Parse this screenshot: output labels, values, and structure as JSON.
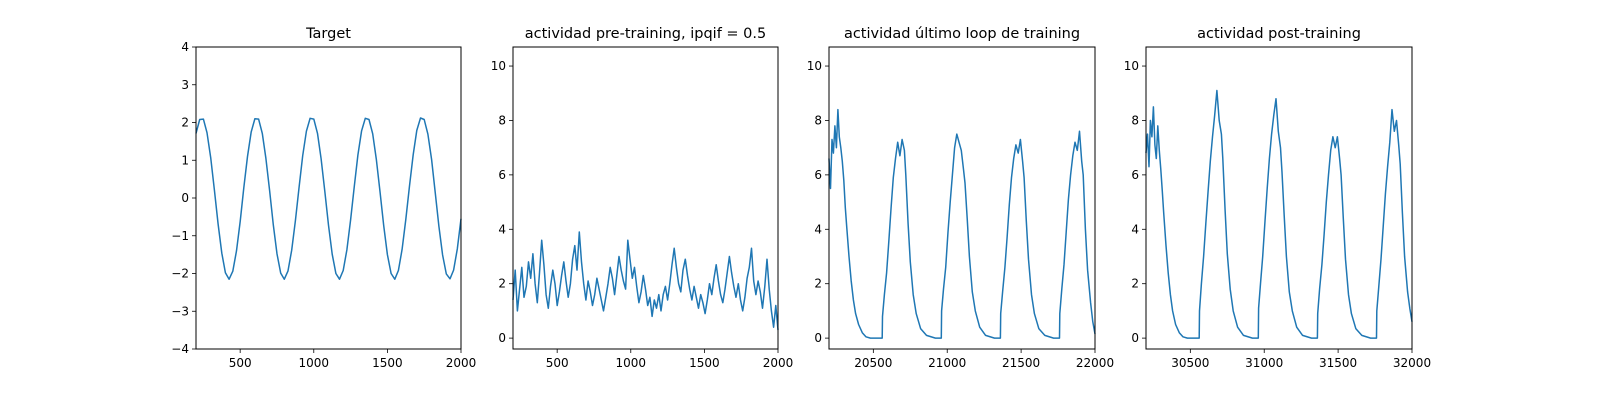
{
  "chart_data": [
    {
      "type": "line",
      "title": "Target",
      "xlim": [
        200,
        2000
      ],
      "ylim": [
        -4,
        4
      ],
      "xticks": [
        500,
        1000,
        1500,
        2000
      ],
      "yticks": [
        -4,
        -3,
        -2,
        -1,
        0,
        1,
        2,
        3,
        4
      ],
      "series": [
        {
          "color": "#1f77b4",
          "x": [
            200,
            225,
            250,
            275,
            300,
            325,
            350,
            375,
            400,
            425,
            450,
            475,
            500,
            525,
            550,
            575,
            600,
            625,
            650,
            675,
            700,
            725,
            750,
            775,
            800,
            825,
            850,
            875,
            900,
            925,
            950,
            975,
            1000,
            1025,
            1050,
            1075,
            1100,
            1125,
            1150,
            1175,
            1200,
            1225,
            1250,
            1275,
            1300,
            1325,
            1350,
            1375,
            1400,
            1425,
            1450,
            1475,
            1500,
            1525,
            1550,
            1575,
            1600,
            1625,
            1650,
            1675,
            1700,
            1725,
            1750,
            1775,
            1800,
            1825,
            1850,
            1875,
            1900,
            1925,
            1950,
            1975,
            2000
          ],
          "y": [
            1.71,
            2.08,
            2.09,
            1.73,
            1.07,
            0.21,
            -0.69,
            -1.46,
            -1.98,
            -2.15,
            -1.94,
            -1.4,
            -0.62,
            0.27,
            1.1,
            1.75,
            2.1,
            2.09,
            1.71,
            1.05,
            0.2,
            -0.71,
            -1.48,
            -1.99,
            -2.15,
            -1.93,
            -1.38,
            -0.6,
            0.29,
            1.12,
            1.77,
            2.11,
            2.09,
            1.71,
            1.04,
            0.18,
            -0.72,
            -1.49,
            -2.0,
            -2.15,
            -1.92,
            -1.37,
            -0.58,
            0.31,
            1.14,
            1.78,
            2.11,
            2.08,
            1.7,
            1.03,
            0.17,
            -0.73,
            -1.5,
            -2.0,
            -2.15,
            -1.92,
            -1.36,
            -0.57,
            0.32,
            1.15,
            1.79,
            2.12,
            2.08,
            1.69,
            1.02,
            0.15,
            -0.75,
            -1.51,
            -2.01,
            -2.14,
            -1.91,
            -1.35,
            -0.55
          ]
        }
      ]
    },
    {
      "type": "line",
      "title": "actividad pre-training, ipqif = 0.5",
      "xlim": [
        200,
        2000
      ],
      "ylim": [
        -0.4,
        10.7
      ],
      "xticks": [
        500,
        1000,
        1500,
        2000
      ],
      "yticks": [
        0,
        2,
        4,
        6,
        8,
        10
      ],
      "series": [
        {
          "color": "#1f77b4",
          "x": [
            200,
            215,
            230,
            245,
            260,
            275,
            290,
            305,
            320,
            335,
            350,
            365,
            380,
            395,
            410,
            425,
            440,
            455,
            470,
            485,
            500,
            515,
            530,
            545,
            560,
            575,
            590,
            605,
            620,
            635,
            650,
            665,
            680,
            695,
            710,
            725,
            740,
            755,
            770,
            785,
            800,
            815,
            830,
            845,
            860,
            875,
            890,
            905,
            920,
            935,
            950,
            965,
            980,
            995,
            1010,
            1025,
            1040,
            1055,
            1070,
            1085,
            1100,
            1115,
            1130,
            1145,
            1160,
            1175,
            1190,
            1205,
            1220,
            1235,
            1250,
            1265,
            1280,
            1295,
            1310,
            1325,
            1340,
            1355,
            1370,
            1385,
            1400,
            1415,
            1430,
            1445,
            1460,
            1475,
            1490,
            1505,
            1520,
            1535,
            1550,
            1565,
            1580,
            1595,
            1610,
            1625,
            1640,
            1655,
            1670,
            1685,
            1700,
            1715,
            1730,
            1745,
            1760,
            1775,
            1790,
            1805,
            1820,
            1835,
            1850,
            1865,
            1880,
            1895,
            1910,
            1925,
            1940,
            1955,
            1970,
            1985,
            2000
          ],
          "y": [
            1.4,
            2.5,
            1.0,
            1.8,
            2.6,
            1.5,
            1.9,
            2.8,
            2.2,
            3.1,
            2.0,
            1.3,
            2.4,
            3.6,
            2.7,
            1.6,
            1.1,
            1.9,
            2.5,
            2.0,
            1.2,
            1.7,
            2.3,
            2.8,
            2.1,
            1.5,
            2.0,
            2.9,
            3.4,
            2.5,
            3.9,
            2.8,
            2.0,
            1.4,
            2.1,
            1.7,
            1.2,
            1.6,
            2.2,
            1.8,
            1.4,
            1.0,
            1.5,
            2.0,
            2.6,
            2.2,
            1.6,
            2.3,
            3.0,
            2.5,
            2.1,
            1.8,
            3.6,
            2.9,
            2.2,
            2.6,
            1.9,
            1.3,
            1.7,
            2.3,
            1.8,
            1.2,
            1.5,
            0.8,
            1.4,
            1.1,
            1.6,
            1.0,
            1.6,
            1.9,
            1.4,
            2.0,
            2.7,
            3.3,
            2.6,
            2.0,
            1.7,
            2.5,
            2.9,
            2.3,
            1.8,
            1.4,
            1.9,
            1.5,
            1.1,
            1.6,
            1.3,
            0.9,
            1.4,
            2.0,
            1.6,
            2.2,
            2.7,
            2.1,
            1.6,
            1.3,
            1.8,
            2.4,
            3.0,
            2.4,
            1.9,
            1.5,
            2.0,
            1.4,
            1.0,
            1.5,
            2.2,
            2.6,
            3.3,
            2.1,
            1.6,
            2.1,
            1.7,
            1.1,
            1.9,
            2.9,
            1.8,
            1.0,
            0.4,
            1.2,
            0.3
          ]
        }
      ]
    },
    {
      "type": "line",
      "title": "actividad último loop de training",
      "xlim": [
        20200,
        22000
      ],
      "ylim": [
        -0.4,
        10.7
      ],
      "xticks": [
        20500,
        21000,
        21500,
        22000
      ],
      "yticks": [
        0,
        2,
        4,
        6,
        8,
        10
      ],
      "series": [
        {
          "color": "#1f77b4",
          "x": [
            20200,
            20210,
            20220,
            20230,
            20240,
            20250,
            20260,
            20270,
            20280,
            20290,
            20300,
            20310,
            20320,
            20335,
            20350,
            20365,
            20380,
            20400,
            20425,
            20450,
            20480,
            20520,
            20560,
            20562,
            20575,
            20590,
            20605,
            20620,
            20635,
            20650,
            20665,
            20680,
            20695,
            20710,
            20720,
            20735,
            20750,
            20770,
            20790,
            20820,
            20860,
            20920,
            20960,
            20962,
            20975,
            20990,
            21005,
            21020,
            21035,
            21050,
            21065,
            21080,
            21095,
            21110,
            21120,
            21135,
            21150,
            21170,
            21190,
            21220,
            21260,
            21320,
            21360,
            21362,
            21375,
            21390,
            21405,
            21420,
            21435,
            21450,
            21465,
            21480,
            21495,
            21510,
            21520,
            21535,
            21550,
            21570,
            21590,
            21620,
            21660,
            21720,
            21760,
            21762,
            21775,
            21790,
            21805,
            21820,
            21835,
            21850,
            21865,
            21880,
            21895,
            21910,
            21920,
            21935,
            21950,
            21970,
            21985,
            22000
          ],
          "y": [
            6.6,
            5.5,
            7.3,
            6.8,
            7.8,
            7.0,
            8.4,
            7.4,
            7.0,
            6.5,
            5.8,
            4.8,
            4.1,
            3.0,
            2.1,
            1.4,
            0.9,
            0.5,
            0.2,
            0.05,
            0.0,
            0.0,
            0.0,
            0.8,
            1.6,
            2.4,
            3.6,
            4.8,
            5.9,
            6.6,
            7.2,
            6.7,
            7.3,
            6.9,
            6.0,
            4.2,
            2.8,
            1.6,
            0.9,
            0.35,
            0.1,
            0.0,
            0.0,
            1.0,
            1.8,
            2.6,
            3.9,
            5.0,
            6.0,
            7.0,
            7.5,
            7.2,
            6.9,
            6.2,
            5.7,
            4.4,
            3.0,
            1.7,
            1.0,
            0.4,
            0.1,
            0.0,
            0.0,
            0.9,
            1.7,
            2.6,
            3.7,
            4.9,
            5.9,
            6.6,
            7.1,
            6.8,
            7.3,
            6.5,
            5.9,
            4.3,
            2.9,
            1.6,
            0.9,
            0.35,
            0.1,
            0.0,
            0.0,
            0.9,
            1.8,
            2.7,
            3.9,
            5.1,
            6.0,
            6.7,
            7.2,
            6.9,
            7.6,
            6.5,
            6.0,
            4.0,
            2.5,
            1.3,
            0.6,
            0.15
          ]
        }
      ]
    },
    {
      "type": "line",
      "title": "actividad post-training",
      "xlim": [
        30200,
        32000
      ],
      "ylim": [
        -0.4,
        10.7
      ],
      "xticks": [
        30500,
        31000,
        31500,
        32000
      ],
      "yticks": [
        0,
        2,
        4,
        6,
        8,
        10
      ],
      "series": [
        {
          "color": "#1f77b4",
          "x": [
            30200,
            30210,
            30220,
            30230,
            30240,
            30250,
            30260,
            30270,
            30280,
            30290,
            30300,
            30310,
            30320,
            30335,
            30350,
            30365,
            30380,
            30400,
            30425,
            30450,
            30480,
            30520,
            30560,
            30562,
            30575,
            30590,
            30605,
            30620,
            30635,
            30650,
            30665,
            30680,
            30695,
            30710,
            30720,
            30735,
            30750,
            30770,
            30790,
            30820,
            30860,
            30920,
            30960,
            30962,
            30975,
            30990,
            31005,
            31020,
            31035,
            31050,
            31065,
            31080,
            31095,
            31110,
            31120,
            31135,
            31150,
            31170,
            31190,
            31220,
            31260,
            31320,
            31360,
            31362,
            31375,
            31390,
            31405,
            31420,
            31435,
            31450,
            31465,
            31480,
            31495,
            31510,
            31520,
            31535,
            31550,
            31570,
            31590,
            31620,
            31660,
            31720,
            31760,
            31762,
            31775,
            31790,
            31805,
            31820,
            31835,
            31850,
            31865,
            31880,
            31895,
            31910,
            31920,
            31935,
            31950,
            31970,
            31985,
            32000
          ],
          "y": [
            6.8,
            7.5,
            6.3,
            8.0,
            7.4,
            8.5,
            7.1,
            6.6,
            7.8,
            6.9,
            6.2,
            5.4,
            4.6,
            3.4,
            2.4,
            1.6,
            1.0,
            0.5,
            0.2,
            0.05,
            0.0,
            0.0,
            0.0,
            1.0,
            2.0,
            3.0,
            4.2,
            5.4,
            6.5,
            7.4,
            8.2,
            9.1,
            8.0,
            7.5,
            6.6,
            4.7,
            3.1,
            1.8,
            1.0,
            0.4,
            0.1,
            0.0,
            0.0,
            1.1,
            2.0,
            3.0,
            4.3,
            5.5,
            6.6,
            7.5,
            8.2,
            8.8,
            7.6,
            7.0,
            6.1,
            4.5,
            3.0,
            1.7,
            1.0,
            0.4,
            0.1,
            0.0,
            0.0,
            0.9,
            1.8,
            2.7,
            3.8,
            5.0,
            6.0,
            6.9,
            7.4,
            7.0,
            7.4,
            6.6,
            6.0,
            4.4,
            2.9,
            1.6,
            0.9,
            0.35,
            0.1,
            0.0,
            0.0,
            1.0,
            1.9,
            2.9,
            4.1,
            5.3,
            6.3,
            7.2,
            8.4,
            7.6,
            8.0,
            7.1,
            6.4,
            4.6,
            3.0,
            1.7,
            1.1,
            0.6
          ]
        }
      ]
    }
  ]
}
